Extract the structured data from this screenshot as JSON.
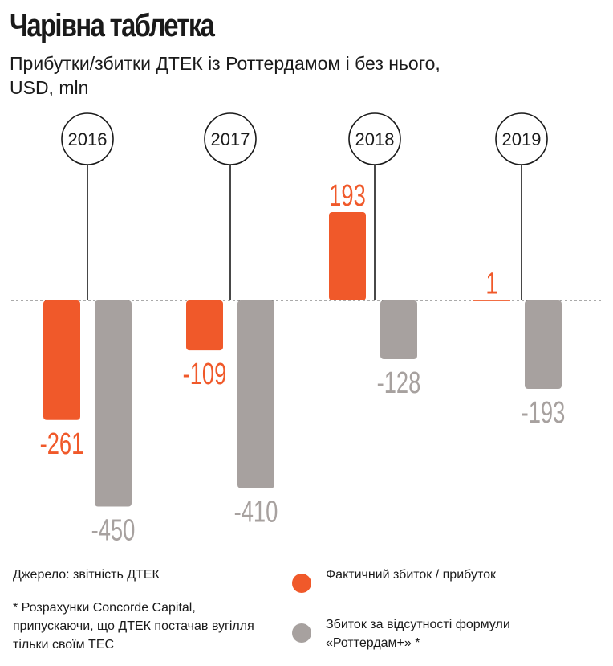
{
  "title": "Чарівна таблетка",
  "subtitle": "Прибутки/збитки ДТЕК із Роттердамом і без нього, USD, mln",
  "source": "Джерело: звітність ДТЕК",
  "note": "* Розрахунки Concorde Capital, припускаючи, що ДТЕК постачав вугілля тільки своїм ТЕС",
  "legend": [
    {
      "label": "Фактичний збиток / прибуток",
      "color": "#f0592a"
    },
    {
      "label": "Збиток за відсутності формули «Роттердам+» *",
      "color": "#a7a19f"
    }
  ],
  "chart_data": {
    "type": "bar",
    "categories": [
      "2016",
      "2017",
      "2018",
      "2019"
    ],
    "series": [
      {
        "values": [
          -261,
          -109,
          193,
          1
        ],
        "color": "#f0592a"
      },
      {
        "values": [
          -450,
          -410,
          -128,
          -193
        ],
        "color": "#a7a19f"
      }
    ],
    "data_labels": [
      [
        "-261",
        "-109",
        "193",
        "1"
      ],
      [
        "-450",
        "-410",
        "-128",
        "-193"
      ]
    ],
    "xlabel": "",
    "ylabel": "",
    "baseline": 0
  }
}
